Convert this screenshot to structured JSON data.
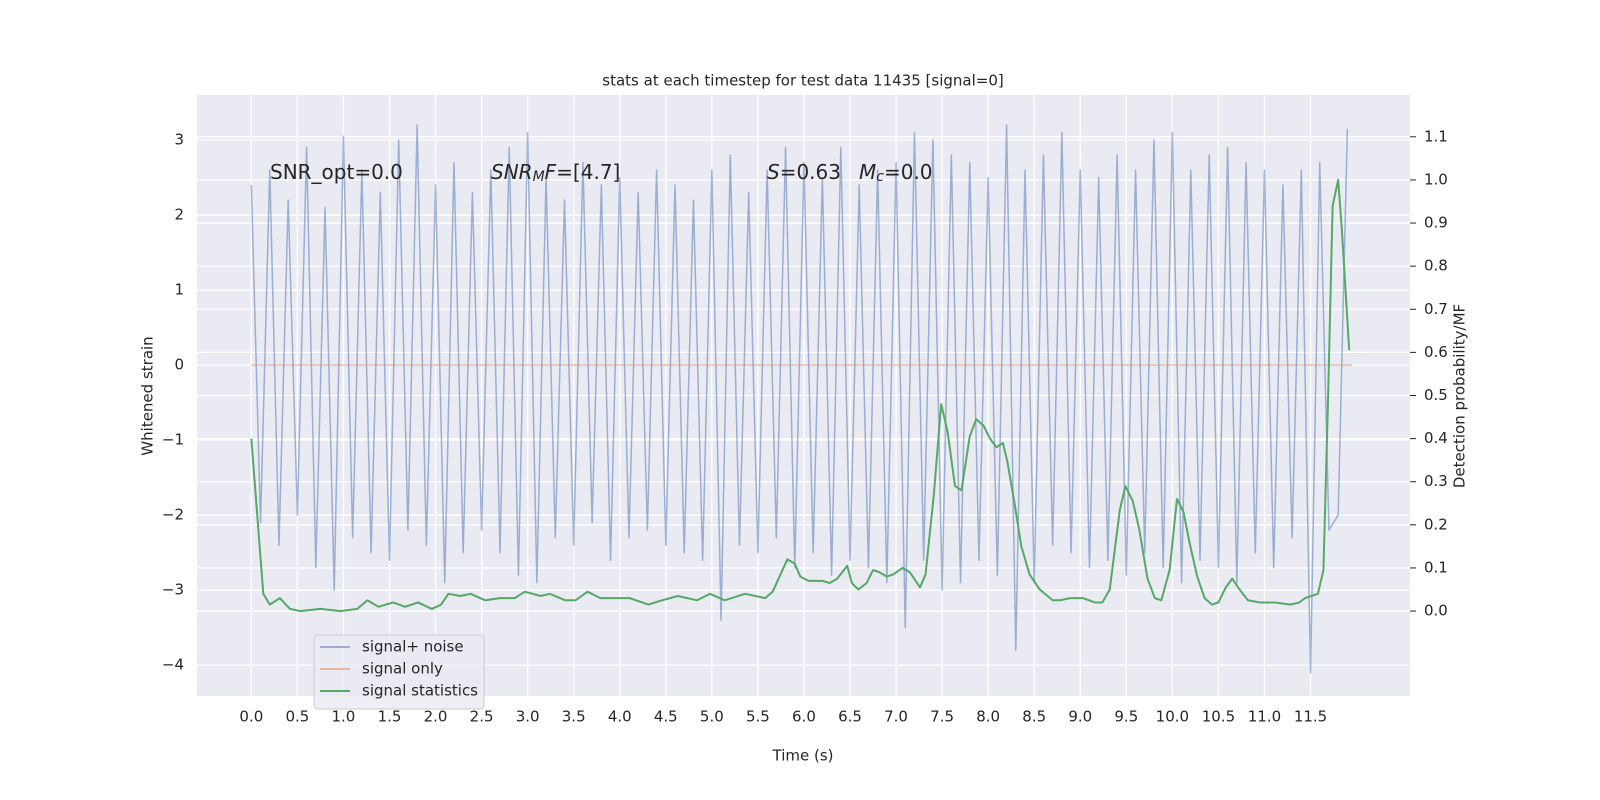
{
  "chart_data": {
    "type": "line",
    "title": "stats at each timestep for test data 11435 [signal=0]",
    "xlabel": "Time (s)",
    "ylabel": "Whitened strain",
    "y2label": "Detection probability/MF",
    "xlim": [
      -0.59,
      12.58
    ],
    "ylim": [
      -4.41,
      3.6
    ],
    "y2lim": [
      -0.197,
      1.197
    ],
    "xticks": [
      {
        "value": 0,
        "label": "0.0"
      },
      0.5,
      {
        "value": 1,
        "label": "1.0"
      },
      1.5,
      {
        "value": 2,
        "label": "2.0"
      },
      2.5,
      {
        "value": 3,
        "label": "3.0"
      },
      3.5,
      {
        "value": 4,
        "label": "4.0"
      },
      4.5,
      {
        "value": 5,
        "label": "5.0"
      },
      5.5,
      {
        "value": 6,
        "label": "6.0"
      },
      6.5,
      {
        "value": 7,
        "label": "7.0"
      },
      7.5,
      {
        "value": 8,
        "label": "8.0"
      },
      8.5,
      {
        "value": 9,
        "label": "9.0"
      },
      9.5,
      {
        "value": 10,
        "label": "10.0"
      },
      10.5,
      {
        "value": 11,
        "label": "11.0"
      },
      11.5
    ],
    "yticks": [
      {
        "value": -4,
        "label": "−4"
      },
      {
        "value": -3,
        "label": "−3"
      },
      {
        "value": -2,
        "label": "−2"
      },
      {
        "value": -1,
        "label": "−1"
      },
      0,
      1,
      2,
      3
    ],
    "y2ticks": [
      {
        "value": 0,
        "label": "0.0"
      },
      0.1,
      0.2,
      0.3,
      0.4,
      0.5,
      0.6,
      0.7,
      0.8,
      0.9,
      {
        "value": 1,
        "label": "1.0"
      },
      1.1
    ],
    "grid": true,
    "legend": "lower left",
    "annotations": [
      {
        "parts": [
          {
            "text": "SNR_opt=0.0"
          }
        ]
      },
      {
        "parts": [
          {
            "text": "SNR",
            "italic": true
          },
          {
            "text": "M",
            "italic": true,
            "sub": true
          },
          {
            "text": "F",
            "italic": true
          },
          {
            "text": "=[4.7]"
          }
        ]
      },
      {
        "parts": [
          {
            "text": "S",
            "italic": true
          },
          {
            "text": "=0.63"
          }
        ]
      },
      {
        "parts": [
          {
            "text": "M",
            "italic": true
          },
          {
            "text": "c",
            "italic": true,
            "sub": true
          },
          {
            "text": "=0.0"
          }
        ]
      }
    ],
    "series": [
      {
        "name": "signal+ noise",
        "color": "#4c72b0",
        "alpha": 0.5,
        "x": [
          0.0,
          0.1,
          0.2,
          0.3,
          0.4,
          0.5,
          0.6,
          0.7,
          0.8,
          0.9,
          1.0,
          1.1,
          1.2,
          1.3,
          1.4,
          1.5,
          1.6,
          1.7,
          1.8,
          1.9,
          2.0,
          2.1,
          2.2,
          2.3,
          2.4,
          2.5,
          2.6,
          2.7,
          2.8,
          2.9,
          3.0,
          3.1,
          3.2,
          3.3,
          3.4,
          3.5,
          3.6,
          3.7,
          3.8,
          3.9,
          4.0,
          4.1,
          4.2,
          4.3,
          4.4,
          4.5,
          4.6,
          4.7,
          4.8,
          4.9,
          5.0,
          5.1,
          5.2,
          5.3,
          5.4,
          5.5,
          5.6,
          5.7,
          5.8,
          5.9,
          6.0,
          6.1,
          6.2,
          6.3,
          6.4,
          6.5,
          6.6,
          6.7,
          6.8,
          6.9,
          7.0,
          7.1,
          7.2,
          7.3,
          7.4,
          7.5,
          7.6,
          7.7,
          7.8,
          7.9,
          8.0,
          8.1,
          8.2,
          8.3,
          8.4,
          8.5,
          8.6,
          8.7,
          8.8,
          8.9,
          9.0,
          9.1,
          9.2,
          9.3,
          9.4,
          9.5,
          9.6,
          9.7,
          9.8,
          9.9,
          10.0,
          10.1,
          10.2,
          10.3,
          10.4,
          10.5,
          10.6,
          10.7,
          10.8,
          10.9,
          11.0,
          11.1,
          11.2,
          11.3,
          11.4,
          11.5,
          11.6,
          11.7,
          11.8,
          11.9
        ],
        "values": [
          2.4,
          -2.1,
          2.6,
          -2.4,
          2.2,
          -2.0,
          2.9,
          -2.7,
          2.1,
          -3.0,
          3.05,
          -2.3,
          2.6,
          -2.5,
          2.3,
          -2.6,
          3.0,
          -2.2,
          3.2,
          -2.4,
          2.4,
          -2.9,
          2.7,
          -2.5,
          2.3,
          -2.2,
          2.6,
          -2.5,
          2.9,
          -2.8,
          3.1,
          -2.9,
          2.5,
          -2.3,
          2.2,
          -2.4,
          2.7,
          -2.1,
          2.4,
          -2.6,
          2.5,
          -2.3,
          2.3,
          -2.2,
          2.6,
          -2.4,
          2.4,
          -2.5,
          2.2,
          -2.6,
          2.6,
          -3.4,
          2.8,
          -2.4,
          2.3,
          -2.5,
          2.6,
          -2.3,
          2.9,
          -2.7,
          2.7,
          -2.5,
          2.5,
          -2.8,
          2.9,
          -2.6,
          2.4,
          -2.7,
          2.6,
          -2.9,
          2.7,
          -3.5,
          3.1,
          -2.6,
          3.0,
          -3.0,
          2.8,
          -2.9,
          2.7,
          -2.6,
          2.5,
          -2.8,
          3.2,
          -3.8,
          2.6,
          -2.9,
          2.8,
          -2.4,
          3.1,
          -2.5,
          2.6,
          -2.7,
          2.5,
          -2.6,
          2.8,
          -2.8,
          2.6,
          -2.5,
          3.0,
          -2.7,
          3.1,
          -2.9,
          2.6,
          -2.6,
          2.8,
          -2.7,
          2.9,
          -2.9,
          2.7,
          -2.5,
          2.6,
          -2.7,
          2.4,
          -2.3,
          2.6,
          -4.1,
          2.7,
          -2.2,
          -2.0,
          3.15
        ]
      },
      {
        "name": "signal only",
        "color": "#dd8452",
        "alpha": 0.5,
        "x": [
          0.0,
          11.95
        ],
        "values": [
          0,
          0
        ]
      },
      {
        "name": "signal statistics",
        "color": "#55a868",
        "alpha": 1,
        "axis": "y2",
        "x": [
          0,
          0.13,
          0.2,
          0.31,
          0.42,
          0.53,
          0.75,
          0.97,
          1.15,
          1.26,
          1.38,
          1.54,
          1.67,
          1.81,
          1.96,
          2.06,
          2.14,
          2.27,
          2.38,
          2.54,
          2.7,
          2.86,
          2.97,
          3.14,
          3.24,
          3.41,
          3.52,
          3.65,
          3.79,
          4.11,
          4.31,
          4.46,
          4.63,
          4.84,
          4.98,
          5.14,
          5.36,
          5.58,
          5.66,
          5.82,
          5.9,
          5.96,
          6.05,
          6.2,
          6.28,
          6.36,
          6.47,
          6.52,
          6.59,
          6.68,
          6.75,
          6.82,
          6.9,
          6.97,
          7.07,
          7.15,
          7.26,
          7.32,
          7.41,
          7.49,
          7.56,
          7.64,
          7.71,
          7.8,
          7.87,
          7.95,
          8.02,
          8.09,
          8.16,
          8.21,
          8.29,
          8.36,
          8.45,
          8.56,
          8.7,
          8.78,
          8.89,
          9.03,
          9.16,
          9.24,
          9.32,
          9.43,
          9.49,
          9.57,
          9.64,
          9.73,
          9.81,
          9.88,
          9.97,
          10.05,
          10.12,
          10.19,
          10.27,
          10.35,
          10.43,
          10.5,
          10.58,
          10.65,
          10.73,
          10.82,
          10.95,
          11.11,
          11.28,
          11.38,
          11.44,
          11.58,
          11.64,
          11.69,
          11.74,
          11.8,
          11.84,
          11.92
        ],
        "values": [
          0.4,
          0.04,
          0.015,
          0.03,
          0.005,
          0.0,
          0.005,
          0.0,
          0.005,
          0.025,
          0.01,
          0.02,
          0.01,
          0.02,
          0.005,
          0.015,
          0.04,
          0.035,
          0.04,
          0.025,
          0.03,
          0.03,
          0.045,
          0.035,
          0.04,
          0.025,
          0.025,
          0.045,
          0.03,
          0.03,
          0.015,
          0.025,
          0.035,
          0.025,
          0.04,
          0.025,
          0.04,
          0.03,
          0.045,
          0.12,
          0.11,
          0.08,
          0.07,
          0.07,
          0.065,
          0.075,
          0.105,
          0.065,
          0.05,
          0.065,
          0.095,
          0.09,
          0.08,
          0.085,
          0.1,
          0.09,
          0.055,
          0.085,
          0.27,
          0.48,
          0.415,
          0.29,
          0.28,
          0.405,
          0.445,
          0.43,
          0.4,
          0.38,
          0.39,
          0.345,
          0.245,
          0.15,
          0.085,
          0.05,
          0.025,
          0.025,
          0.03,
          0.03,
          0.02,
          0.02,
          0.05,
          0.235,
          0.29,
          0.255,
          0.19,
          0.075,
          0.03,
          0.025,
          0.095,
          0.26,
          0.23,
          0.155,
          0.08,
          0.03,
          0.015,
          0.02,
          0.055,
          0.075,
          0.05,
          0.025,
          0.02,
          0.02,
          0.015,
          0.02,
          0.03,
          0.04,
          0.095,
          0.49,
          0.94,
          1.0,
          0.885,
          0.605
        ]
      }
    ]
  }
}
